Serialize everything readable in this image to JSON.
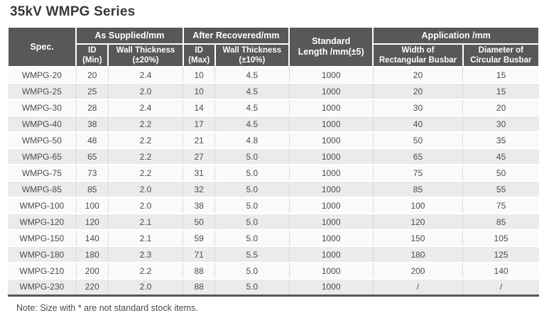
{
  "title": "35kV WMPG Series",
  "note": "Note: Size with * are not standard stock items.",
  "colors": {
    "header_bg": "#595757",
    "header_text": "#ffffff",
    "row_odd": "#fafafa",
    "row_even": "#ebebeb",
    "divider": "#d9d9d9",
    "body_text": "#4c4c4e",
    "title_text": "#383838",
    "note_text": "#4a4a4a"
  },
  "table": {
    "head": {
      "spec": "Spec.",
      "as_supplied": "As Supplied/mm",
      "after_recovered": "After Recovered/mm",
      "standard_length": [
        "Standard",
        "Length /mm(±5)"
      ],
      "application": "Application /mm",
      "sub": {
        "id_min": [
          "ID",
          "(Min)"
        ],
        "wall_20": [
          "Wall Thickness",
          "(±20%)"
        ],
        "id_max": [
          "ID",
          "(Max)"
        ],
        "wall_10": [
          "Wall Thickness",
          "(±10%)"
        ],
        "width_rect": [
          "Width of",
          "Rectangular Busbar"
        ],
        "dia_circ": [
          "Diameter of",
          "Circular Busbar"
        ]
      }
    },
    "rows": [
      [
        "WMPG-20",
        "20",
        "2.4",
        "10",
        "4.5",
        "1000",
        "20",
        "15"
      ],
      [
        "WMPG-25",
        "25",
        "2.0",
        "10",
        "4.5",
        "1000",
        "20",
        "15"
      ],
      [
        "WMPG-30",
        "28",
        "2.4",
        "14",
        "4.5",
        "1000",
        "30",
        "20"
      ],
      [
        "WMPG-40",
        "38",
        "2.2",
        "17",
        "4.5",
        "1000",
        "40",
        "30"
      ],
      [
        "WMPG-50",
        "48",
        "2.2",
        "21",
        "4.8",
        "1000",
        "50",
        "35"
      ],
      [
        "WMPG-65",
        "65",
        "2.2",
        "27",
        "5.0",
        "1000",
        "65",
        "45"
      ],
      [
        "WMPG-75",
        "73",
        "2.2",
        "31",
        "5.0",
        "1000",
        "75",
        "50"
      ],
      [
        "WMPG-85",
        "85",
        "2.0",
        "32",
        "5.0",
        "1000",
        "85",
        "55"
      ],
      [
        "WMPG-100",
        "100",
        "2.0",
        "38",
        "5.0",
        "1000",
        "100",
        "75"
      ],
      [
        "WMPG-120",
        "120",
        "2.1",
        "50",
        "5.0",
        "1000",
        "120",
        "85"
      ],
      [
        "WMPG-150",
        "140",
        "2.1",
        "59",
        "5.0",
        "1000",
        "150",
        "105"
      ],
      [
        "WMPG-180",
        "180",
        "2.3",
        "71",
        "5.5",
        "1000",
        "180",
        "125"
      ],
      [
        "WMPG-210",
        "200",
        "2.2",
        "88",
        "5.0",
        "1000",
        "200",
        "140"
      ],
      [
        "WMPG-230",
        "220",
        "2.0",
        "88",
        "5.0",
        "1000",
        "/",
        "/"
      ]
    ]
  }
}
